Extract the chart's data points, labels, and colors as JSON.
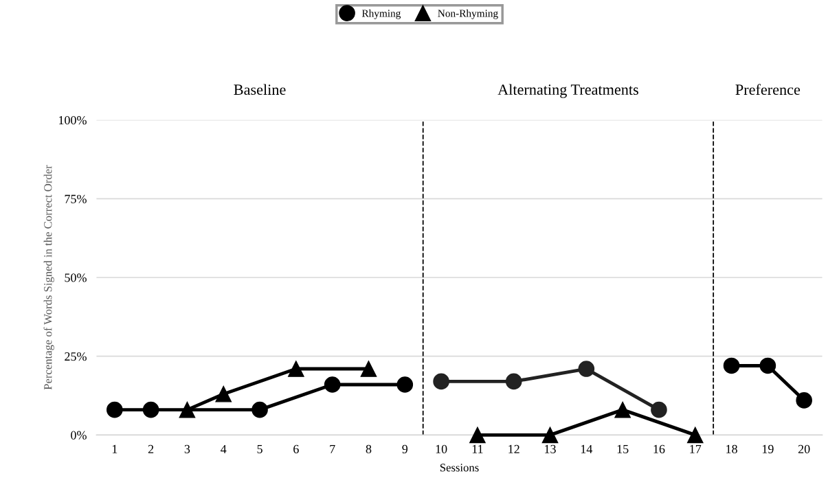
{
  "chart_data": {
    "type": "line",
    "xlabel": "Sessions",
    "ylabel": "Percentage of Words Signed in the Correct Order",
    "xlim": [
      0.5,
      20.5
    ],
    "xticks": [
      1,
      2,
      3,
      4,
      5,
      6,
      7,
      8,
      9,
      10,
      11,
      12,
      13,
      14,
      15,
      16,
      17,
      18,
      19,
      20
    ],
    "ylim": [
      0,
      100
    ],
    "yticks": [
      {
        "value": 0,
        "label": "0%"
      },
      {
        "value": 25,
        "label": "25%"
      },
      {
        "value": 50,
        "label": "50%"
      },
      {
        "value": 75,
        "label": "75%"
      },
      {
        "value": 100,
        "label": "100%"
      }
    ],
    "grid": "y",
    "legend": "top",
    "line_style": "solid",
    "series": [
      {
        "name": "Rhyming",
        "marker": "circle",
        "color": "#000000",
        "x": [
          1,
          2,
          5,
          7,
          9
        ],
        "values": [
          8,
          8,
          8,
          16,
          16
        ]
      },
      {
        "name": "Non-Rhyming",
        "marker": "triangle",
        "color": "#000000",
        "x": [
          3,
          4,
          6,
          8
        ],
        "values": [
          8,
          13,
          21,
          21
        ]
      },
      {
        "marker": "circle",
        "color": "#222222",
        "x": [
          10,
          12,
          14,
          16
        ],
        "values": [
          17,
          17,
          21,
          8
        ]
      },
      {
        "marker": "triangle",
        "color": "#000000",
        "x": [
          11,
          13,
          15,
          17
        ],
        "values": [
          0,
          0,
          8,
          0
        ]
      },
      {
        "marker": "circle",
        "color": "#000000",
        "x": [
          18,
          19,
          20
        ],
        "values": [
          22,
          22,
          11
        ]
      }
    ],
    "ref_lines": [
      {
        "axis": "x",
        "value": 9.5,
        "color": "#000000",
        "line_style": "dashed"
      },
      {
        "axis": "x",
        "value": 17.5,
        "color": "#000000",
        "line_style": "dashed"
      }
    ],
    "annotations": [
      "Baseline",
      "Alternating Treatments",
      "Preference"
    ]
  }
}
